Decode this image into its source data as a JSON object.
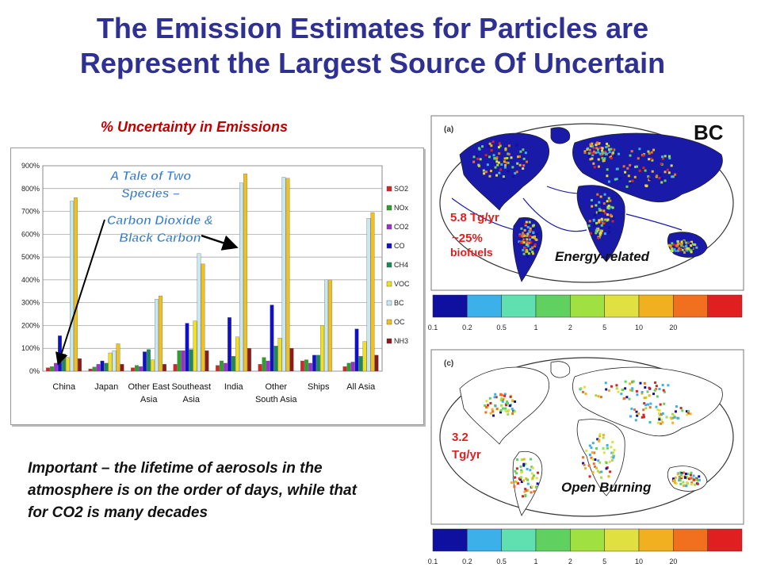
{
  "title": {
    "line1": "The Emission Estimates for Particles are",
    "line2": "Represent the Largest Source Of Uncertain"
  },
  "chart_caption": "% Uncertainty in Emissions",
  "note": "Important – the lifetime of aerosols in the atmosphere is on the order of days, while that for CO2 is many decades",
  "chart_data": {
    "type": "bar",
    "categories": [
      "China",
      "Japan",
      "Other East Asia",
      "Southeast Asia",
      "India",
      "Other South Asia",
      "Ships",
      "All Asia"
    ],
    "category_labels": [
      [
        "China"
      ],
      [
        "Japan"
      ],
      [
        "Other East",
        "Asia"
      ],
      [
        "Southeast",
        "Asia"
      ],
      [
        "India"
      ],
      [
        "Other",
        "South Asia"
      ],
      [
        "Ships"
      ],
      [
        "All Asia"
      ]
    ],
    "ylim": [
      0,
      900
    ],
    "yticks": [
      "0%",
      "100%",
      "200%",
      "300%",
      "400%",
      "500%",
      "600%",
      "700%",
      "800%",
      "900%"
    ],
    "grid": true,
    "legend_position": "right",
    "series": [
      {
        "name": "SO2",
        "color": "#d62728",
        "values": [
          15,
          10,
          15,
          30,
          25,
          30,
          45,
          20
        ]
      },
      {
        "name": "NOx",
        "color": "#2ca02c",
        "values": [
          20,
          18,
          25,
          90,
          45,
          60,
          50,
          35
        ]
      },
      {
        "name": "CO2",
        "color": "#9933cc",
        "values": [
          35,
          30,
          20,
          90,
          35,
          45,
          35,
          40
        ]
      },
      {
        "name": "CO",
        "color": "#1010cc",
        "values": [
          155,
          45,
          85,
          210,
          235,
          290,
          70,
          185
        ]
      },
      {
        "name": "CH4",
        "color": "#1a8a5a",
        "values": [
          75,
          35,
          95,
          95,
          65,
          110,
          70,
          65
        ]
      },
      {
        "name": "VOC",
        "color": "#f0e020",
        "values": [
          60,
          80,
          50,
          220,
          150,
          145,
          200,
          130
        ]
      },
      {
        "name": "BC",
        "color": "#c8e8f0",
        "values": [
          745,
          90,
          315,
          515,
          825,
          850,
          400,
          670
        ]
      },
      {
        "name": "OC",
        "color": "#f0c020",
        "values": [
          760,
          120,
          330,
          470,
          865,
          845,
          400,
          695
        ]
      },
      {
        "name": "NH3",
        "color": "#8b1a1a",
        "values": [
          55,
          30,
          30,
          90,
          100,
          100,
          0,
          70
        ]
      }
    ],
    "annotation": {
      "line1": "A Tale of Two",
      "line2": "Species –",
      "line3": "Carbon Dioxide &",
      "line4": "Black Carbon"
    }
  },
  "maps": {
    "top": {
      "panel_letter": "(a)",
      "species": "BC",
      "value": "5.8 Tg/yr",
      "share": "~25%",
      "share_label": "biofuels",
      "label": "Energy-related"
    },
    "bottom": {
      "panel_letter": "(c)",
      "value_line1": "3.2",
      "value_line2": "Tg/yr",
      "label": "Open Burning"
    },
    "colorbar": {
      "colors": [
        "#1010a0",
        "#3cb0e8",
        "#60e0b0",
        "#60d060",
        "#a0e040",
        "#e0e040",
        "#f0b020",
        "#f07020",
        "#e02020"
      ],
      "ticks": [
        "0.1",
        "0.2",
        "0.5",
        "1",
        "2",
        "5",
        "10",
        "20"
      ]
    }
  }
}
